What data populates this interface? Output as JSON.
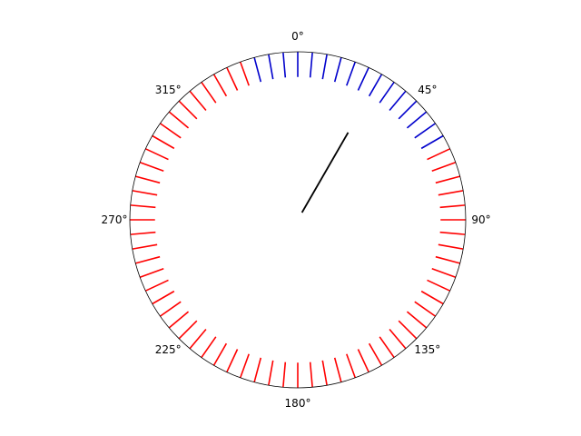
{
  "chart_data": {
    "type": "polar",
    "title": "",
    "direction": "clockwise",
    "zero_location": "top",
    "angle_ticks": [
      {
        "deg": 0,
        "label": "0°"
      },
      {
        "deg": 45,
        "label": "45°"
      },
      {
        "deg": 90,
        "label": "90°"
      },
      {
        "deg": 135,
        "label": "135°"
      },
      {
        "deg": 180,
        "label": "180°"
      },
      {
        "deg": 225,
        "label": "225°"
      },
      {
        "deg": 270,
        "label": "270°"
      },
      {
        "deg": 315,
        "label": "315°"
      }
    ],
    "radial_ticks": {
      "count": 72,
      "step_deg": 5,
      "inner_r": 0.85,
      "outer_r": 1.0,
      "highlight_range_deg": [
        -15,
        60
      ],
      "highlight_color": "#0000cc",
      "default_color": "#ff0000"
    },
    "pointer": {
      "angle_deg": 30,
      "r_start": 0.05,
      "r_end": 0.6,
      "color": "#000000"
    },
    "grid": false,
    "legend": "none"
  }
}
